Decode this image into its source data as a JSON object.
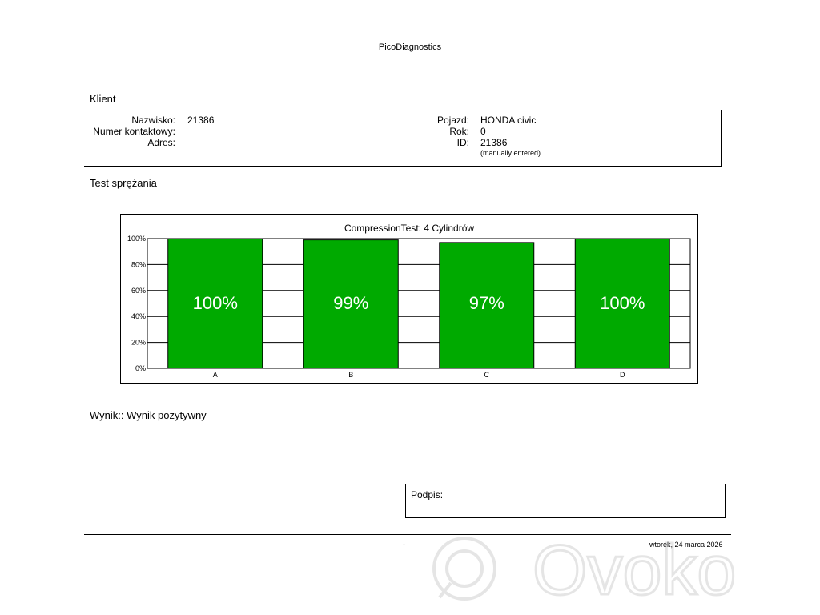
{
  "header": {
    "title": "PicoDiagnostics"
  },
  "client_section": {
    "title": "Klient",
    "fields_left": [
      {
        "label": "Nazwisko:",
        "value": "21386"
      },
      {
        "label": "Numer kontaktowy:",
        "value": ""
      },
      {
        "label": "Adres:",
        "value": ""
      }
    ],
    "fields_right": [
      {
        "label": "Pojazd:",
        "value": "HONDA civic"
      },
      {
        "label": "Rok:",
        "value": "0"
      },
      {
        "label": "ID:",
        "value": "21386"
      }
    ],
    "id_note": "(manually entered)"
  },
  "test_section": {
    "title": "Test sprężania"
  },
  "chart_data": {
    "type": "bar",
    "title": "CompressionTest: 4 Cylindrów",
    "categories": [
      "A",
      "B",
      "C",
      "D"
    ],
    "values": [
      100,
      99,
      97,
      100
    ],
    "data_labels": [
      "100%",
      "99%",
      "97%",
      "100%"
    ],
    "ylim": [
      0,
      100
    ],
    "yticks": [
      "0%",
      "20%",
      "40%",
      "60%",
      "80%",
      "100%"
    ],
    "grid": true,
    "bar_color": "#00aa00"
  },
  "result": {
    "text": "Wynik:: Wynik pozytywny"
  },
  "signature": {
    "label": "Podpis:"
  },
  "footer": {
    "dash": "-",
    "date": "wtorek, 24 marca 2026"
  },
  "watermark": {
    "text": "Ovoko"
  }
}
